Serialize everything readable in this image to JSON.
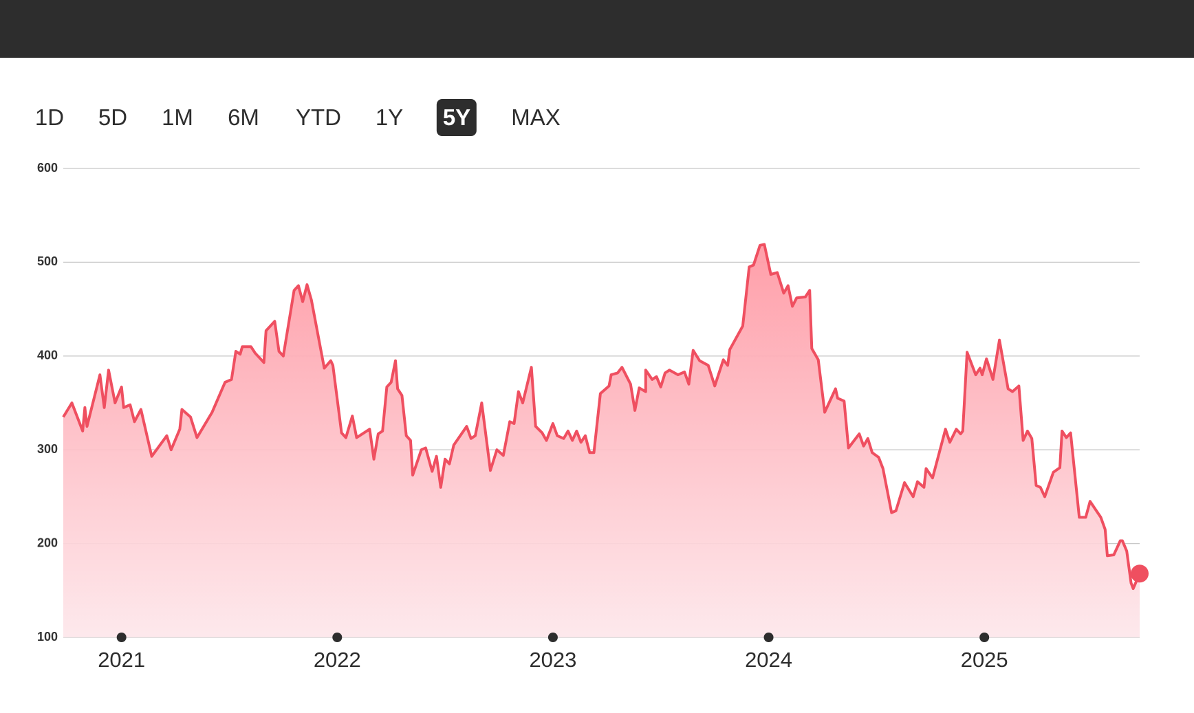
{
  "ui": {
    "ranges": [
      "1D",
      "5D",
      "1M",
      "6M",
      "YTD",
      "1Y",
      "5Y",
      "MAX"
    ],
    "active_range": "5Y"
  },
  "chart_data": {
    "type": "area",
    "color": "#ef4f60",
    "grid": true,
    "xlim": [
      2020.73,
      2025.72
    ],
    "xticks": [
      2021,
      2022,
      2023,
      2024,
      2025
    ],
    "ylim": [
      100,
      600
    ],
    "yticks": [
      100,
      200,
      300,
      400,
      500,
      600
    ],
    "x": [
      2020.73,
      2020.77,
      2020.82,
      2020.83,
      2020.84,
      2020.9,
      2020.92,
      2020.94,
      2020.97,
      2021.0,
      2021.01,
      2021.04,
      2021.06,
      2021.09,
      2021.14,
      2021.21,
      2021.23,
      2021.27,
      2021.28,
      2021.32,
      2021.35,
      2021.42,
      2021.48,
      2021.51,
      2021.53,
      2021.55,
      2021.56,
      2021.6,
      2021.62,
      2021.66,
      2021.67,
      2021.71,
      2021.73,
      2021.75,
      2021.8,
      2021.82,
      2021.84,
      2021.86,
      2021.88,
      2021.94,
      2021.97,
      2021.98,
      2022.02,
      2022.04,
      2022.07,
      2022.09,
      2022.15,
      2022.17,
      2022.19,
      2022.21,
      2022.23,
      2022.25,
      2022.27,
      2022.28,
      2022.3,
      2022.32,
      2022.34,
      2022.35,
      2022.39,
      2022.41,
      2022.44,
      2022.46,
      2022.48,
      2022.5,
      2022.52,
      2022.54,
      2022.6,
      2022.62,
      2022.64,
      2022.67,
      2022.71,
      2022.74,
      2022.77,
      2022.8,
      2022.82,
      2022.84,
      2022.86,
      2022.9,
      2022.92,
      2022.95,
      2022.97,
      2023.0,
      2023.02,
      2023.05,
      2023.07,
      2023.09,
      2023.11,
      2023.13,
      2023.15,
      2023.17,
      2023.19,
      2023.22,
      2023.26,
      2023.27,
      2023.3,
      2023.32,
      2023.36,
      2023.38,
      2023.4,
      2023.43,
      2023.43,
      2023.46,
      2023.48,
      2023.5,
      2023.52,
      2023.54,
      2023.58,
      2023.61,
      2023.63,
      2023.65,
      2023.68,
      2023.72,
      2023.75,
      2023.79,
      2023.81,
      2023.82,
      2023.88,
      2023.91,
      2023.93,
      2023.96,
      2023.98,
      2024.01,
      2024.04,
      2024.07,
      2024.09,
      2024.11,
      2024.13,
      2024.17,
      2024.19,
      2024.2,
      2024.23,
      2024.26,
      2024.31,
      2024.32,
      2024.35,
      2024.37,
      2024.42,
      2024.44,
      2024.46,
      2024.48,
      2024.51,
      2024.53,
      2024.57,
      2024.59,
      2024.63,
      2024.67,
      2024.69,
      2024.72,
      2024.73,
      2024.76,
      2024.82,
      2024.84,
      2024.87,
      2024.89,
      2024.9,
      2024.92,
      2024.96,
      2024.98,
      2024.99,
      2025.01,
      2025.04,
      2025.07,
      2025.11,
      2025.13,
      2025.16,
      2025.18,
      2025.2,
      2025.22,
      2025.24,
      2025.26,
      2025.28,
      2025.32,
      2025.35,
      2025.36,
      2025.38,
      2025.4,
      2025.44,
      2025.47,
      2025.49,
      2025.54,
      2025.56,
      2025.57,
      2025.6,
      2025.63,
      2025.64,
      2025.66,
      2025.68,
      2025.69,
      2025.72
    ],
    "values": [
      335,
      350,
      320,
      345,
      325,
      380,
      345,
      385,
      350,
      367,
      345,
      348,
      330,
      343,
      293,
      315,
      300,
      322,
      343,
      335,
      313,
      340,
      372,
      375,
      405,
      402,
      410,
      410,
      403,
      393,
      427,
      437,
      405,
      400,
      470,
      475,
      458,
      476,
      460,
      387,
      395,
      390,
      318,
      313,
      336,
      313,
      322,
      290,
      317,
      320,
      367,
      372,
      395,
      365,
      358,
      315,
      310,
      273,
      300,
      302,
      277,
      293,
      260,
      290,
      285,
      305,
      325,
      312,
      315,
      350,
      278,
      300,
      294,
      330,
      328,
      362,
      350,
      388,
      325,
      318,
      310,
      328,
      315,
      312,
      320,
      310,
      320,
      308,
      315,
      297,
      297,
      360,
      368,
      380,
      382,
      388,
      370,
      342,
      366,
      362,
      385,
      375,
      378,
      367,
      382,
      385,
      380,
      383,
      370,
      406,
      395,
      390,
      368,
      396,
      390,
      407,
      432,
      495,
      497,
      518,
      519,
      487,
      489,
      467,
      475,
      453,
      462,
      463,
      470,
      408,
      396,
      340,
      365,
      355,
      352,
      302,
      317,
      304,
      312,
      297,
      292,
      280,
      233,
      235,
      265,
      250,
      266,
      260,
      280,
      270,
      322,
      308,
      322,
      317,
      320,
      404,
      380,
      387,
      380,
      397,
      375,
      417,
      365,
      362,
      368,
      310,
      320,
      312,
      262,
      260,
      250,
      276,
      281,
      320,
      313,
      318,
      228,
      228,
      245,
      228,
      215,
      187,
      188,
      203,
      203,
      192,
      158,
      152,
      168
    ]
  }
}
